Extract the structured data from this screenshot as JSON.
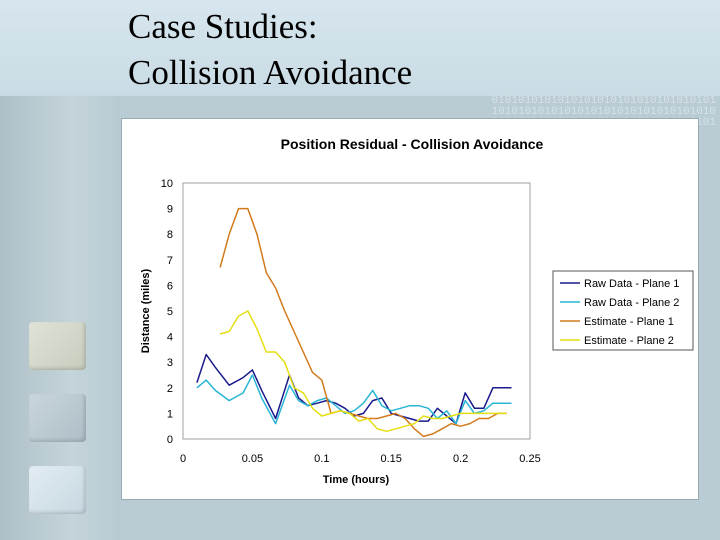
{
  "slide": {
    "title_line1": "Case Studies:",
    "title_line2": "Collision Avoidance",
    "watermark_line1": "0101010101010101010101010101010101",
    "watermark_line2": "1010101010101010101010101010101010",
    "watermark_line3": "0101010101010101010101010101010101"
  },
  "colors": {
    "raw_plane1": "#1a1a8c",
    "raw_plane2": "#29b5d4",
    "est_plane1": "#d27a1c",
    "est_plane2": "#e5de12"
  },
  "chart_data": {
    "type": "line",
    "title": "Position Residual - Collision Avoidance",
    "xlabel": "Time (hours)",
    "ylabel": "Distance (miles)",
    "xlim": [
      0,
      0.25
    ],
    "ylim": [
      0,
      10
    ],
    "x_ticks": [
      0,
      0.05,
      0.1,
      0.15,
      0.2,
      0.25
    ],
    "x_tick_labels": [
      "0",
      "0.05",
      "0.1",
      "0.15",
      "0.2",
      "0.25"
    ],
    "y_ticks": [
      0,
      1,
      2,
      3,
      4,
      5,
      6,
      7,
      8,
      9,
      10
    ],
    "y_tick_labels": [
      "0",
      "1",
      "2",
      "3",
      "4",
      "5",
      "6",
      "7",
      "8",
      "9",
      "10"
    ],
    "legend_position": "right",
    "series": [
      {
        "name": "Raw Data - Plane 1",
        "color_key": "raw_plane1",
        "x": [
          0.01,
          0.0167,
          0.0233,
          0.0333,
          0.0433,
          0.05,
          0.0567,
          0.0667,
          0.0767,
          0.0833,
          0.09,
          0.0967,
          0.1033,
          0.11,
          0.1167,
          0.1233,
          0.13,
          0.1367,
          0.1433,
          0.15,
          0.1567,
          0.1633,
          0.17,
          0.1767,
          0.1833,
          0.19,
          0.1967,
          0.2033,
          0.21,
          0.2167,
          0.2233,
          0.23,
          0.2367
        ],
        "y": [
          2.2,
          3.3,
          2.8,
          2.1,
          2.4,
          2.7,
          1.9,
          0.8,
          2.5,
          1.6,
          1.3,
          1.4,
          1.5,
          1.4,
          1.2,
          0.9,
          1.0,
          1.5,
          1.6,
          1.0,
          0.9,
          0.8,
          0.7,
          0.7,
          1.2,
          0.9,
          0.6,
          1.8,
          1.2,
          1.2,
          2.0,
          2.0,
          2.0
        ]
      },
      {
        "name": "Raw Data - Plane 2",
        "color_key": "raw_plane2",
        "x": [
          0.01,
          0.0167,
          0.0233,
          0.0333,
          0.0433,
          0.05,
          0.0567,
          0.0667,
          0.0767,
          0.0833,
          0.09,
          0.0967,
          0.1033,
          0.11,
          0.1167,
          0.1233,
          0.13,
          0.1367,
          0.1433,
          0.15,
          0.1567,
          0.1633,
          0.17,
          0.1767,
          0.1833,
          0.19,
          0.1967,
          0.2033,
          0.21,
          0.2167,
          0.2233,
          0.23,
          0.2367
        ],
        "y": [
          2.0,
          2.3,
          1.9,
          1.5,
          1.8,
          2.5,
          1.6,
          0.6,
          2.1,
          1.5,
          1.3,
          1.5,
          1.6,
          1.3,
          1.0,
          1.1,
          1.4,
          1.9,
          1.3,
          1.1,
          1.2,
          1.3,
          1.3,
          1.2,
          0.8,
          1.1,
          0.6,
          1.5,
          1.0,
          1.1,
          1.4,
          1.4,
          1.4
        ]
      },
      {
        "name": "Estimate - Plane 1",
        "color_key": "est_plane1",
        "x": [
          0.0267,
          0.0333,
          0.04,
          0.0467,
          0.0533,
          0.06,
          0.0667,
          0.0733,
          0.08,
          0.0867,
          0.0933,
          0.1,
          0.1067,
          0.1133,
          0.12,
          0.1267,
          0.1333,
          0.14,
          0.1467,
          0.1533,
          0.16,
          0.1667,
          0.1733,
          0.18,
          0.1867,
          0.1933,
          0.2,
          0.2067,
          0.2133,
          0.22,
          0.2267,
          0.2333
        ],
        "y": [
          6.7,
          8.0,
          9.0,
          9.0,
          8.0,
          6.5,
          5.9,
          5.0,
          4.2,
          3.4,
          2.6,
          2.3,
          1.0,
          1.1,
          1.0,
          0.9,
          0.8,
          0.8,
          0.9,
          1.0,
          0.8,
          0.4,
          0.1,
          0.2,
          0.4,
          0.6,
          0.5,
          0.6,
          0.8,
          0.8,
          1.0,
          1.0
        ]
      },
      {
        "name": "Estimate - Plane 2",
        "color_key": "est_plane2",
        "x": [
          0.0267,
          0.0333,
          0.04,
          0.0467,
          0.0533,
          0.06,
          0.0667,
          0.0733,
          0.08,
          0.0867,
          0.0933,
          0.1,
          0.1067,
          0.1133,
          0.12,
          0.1267,
          0.1333,
          0.14,
          0.1467,
          0.1533,
          0.16,
          0.1667,
          0.1733,
          0.18,
          0.1867,
          0.1933,
          0.2,
          0.2067,
          0.2133,
          0.22,
          0.2267,
          0.2333
        ],
        "y": [
          4.1,
          4.2,
          4.8,
          5.0,
          4.3,
          3.4,
          3.4,
          3.0,
          2.0,
          1.8,
          1.2,
          0.9,
          1.0,
          1.1,
          1.0,
          0.7,
          0.8,
          0.4,
          0.3,
          0.4,
          0.5,
          0.6,
          0.9,
          0.8,
          0.8,
          0.9,
          1.0,
          1.0,
          1.0,
          1.0,
          1.0,
          1.0
        ]
      }
    ]
  }
}
